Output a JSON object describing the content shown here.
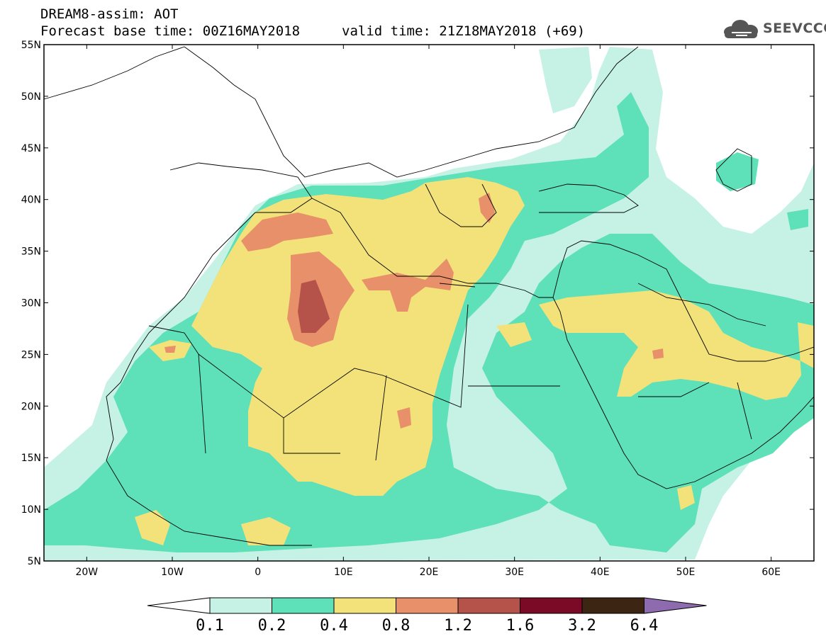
{
  "header": {
    "title": "DREAM8-assim: AOT",
    "base_time": "Forecast base time: 00Z16MAY2018",
    "valid_time": "valid time: 21Z18MAY2018 (+69)"
  },
  "logo": {
    "text": "SEEVCCC",
    "icon": "cloud-icon"
  },
  "map": {
    "lon_range": [
      -25,
      65
    ],
    "lat_range": [
      5,
      55
    ],
    "lat_labels": [
      "55N",
      "50N",
      "45N",
      "40N",
      "35N",
      "30N",
      "25N",
      "20N",
      "15N",
      "10N",
      "5N"
    ],
    "lon_labels": [
      "20W",
      "10W",
      "0",
      "10E",
      "20E",
      "30E",
      "40E",
      "50E",
      "60E"
    ]
  },
  "colorbar": {
    "colors": [
      "#ffffff",
      "#c6f2e6",
      "#5ee0b8",
      "#f3e27a",
      "#e8906a",
      "#b5524a",
      "#7a0a26",
      "#3d2514",
      "#8e6aae"
    ],
    "labels": [
      "0.1",
      "0.2",
      "0.4",
      "0.8",
      "1.2",
      "1.6",
      "3.2",
      "6.4"
    ]
  }
}
